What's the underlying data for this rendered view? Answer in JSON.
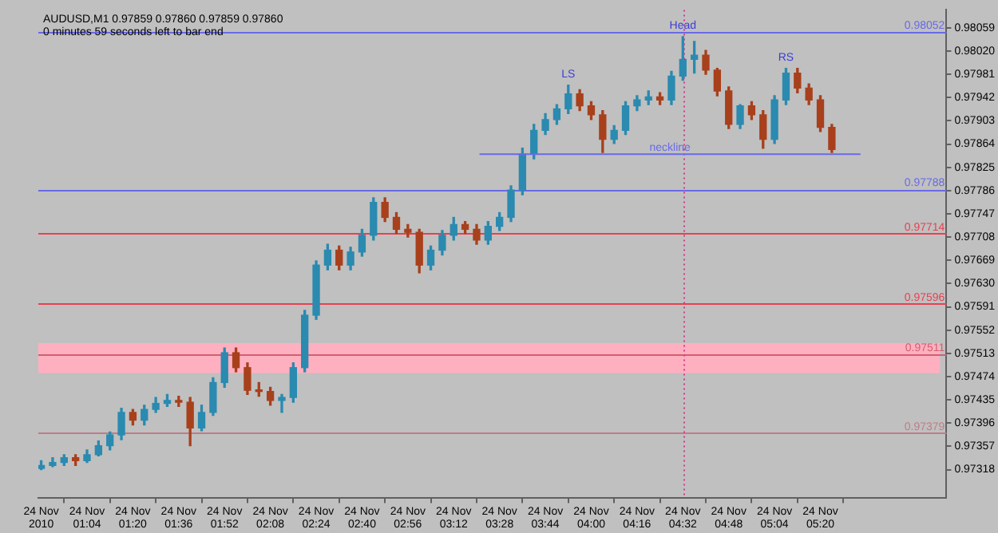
{
  "chart_data": {
    "type": "candlestick",
    "title": "AUDUSD,M1 0.97859 0.97860 0.97859 0.97860",
    "subtitle": "0 minutes 59 seconds left to bar end",
    "x": [
      "2010-11-24T00:48",
      "2010-11-24T00:52",
      "2010-11-24T00:56",
      "2010-11-24T01:00",
      "2010-11-24T01:04",
      "2010-11-24T01:08",
      "2010-11-24T01:12",
      "2010-11-24T01:16",
      "2010-11-24T01:20",
      "2010-11-24T01:24",
      "2010-11-24T01:28",
      "2010-11-24T01:32",
      "2010-11-24T01:36",
      "2010-11-24T01:40",
      "2010-11-24T01:44",
      "2010-11-24T01:48",
      "2010-11-24T01:52",
      "2010-11-24T01:56",
      "2010-11-24T02:00",
      "2010-11-24T02:04",
      "2010-11-24T02:08",
      "2010-11-24T02:12",
      "2010-11-24T02:16",
      "2010-11-24T02:20",
      "2010-11-24T02:24",
      "2010-11-24T02:28",
      "2010-11-24T02:32",
      "2010-11-24T02:36",
      "2010-11-24T02:40",
      "2010-11-24T02:44",
      "2010-11-24T02:48",
      "2010-11-24T02:52",
      "2010-11-24T02:56",
      "2010-11-24T03:00",
      "2010-11-24T03:04",
      "2010-11-24T03:08",
      "2010-11-24T03:12",
      "2010-11-24T03:16",
      "2010-11-24T03:20",
      "2010-11-24T03:24",
      "2010-11-24T03:28",
      "2010-11-24T03:32",
      "2010-11-24T03:36",
      "2010-11-24T03:40",
      "2010-11-24T03:44",
      "2010-11-24T03:48",
      "2010-11-24T03:52",
      "2010-11-24T03:56",
      "2010-11-24T04:00",
      "2010-11-24T04:04",
      "2010-11-24T04:08",
      "2010-11-24T04:12",
      "2010-11-24T04:16",
      "2010-11-24T04:20",
      "2010-11-24T04:24",
      "2010-11-24T04:28",
      "2010-11-24T04:32",
      "2010-11-24T04:36",
      "2010-11-24T04:40",
      "2010-11-24T04:44",
      "2010-11-24T04:48",
      "2010-11-24T04:52",
      "2010-11-24T04:56",
      "2010-11-24T05:00",
      "2010-11-24T05:04",
      "2010-11-24T05:08",
      "2010-11-24T05:12",
      "2010-11-24T05:16",
      "2010-11-24T05:20",
      "2010-11-24T05:24"
    ],
    "ohlc": [
      [
        0.9732,
        0.97333,
        0.97318,
        0.97325
      ],
      [
        0.97325,
        0.97338,
        0.97323,
        0.9733
      ],
      [
        0.9733,
        0.97343,
        0.97325,
        0.97338
      ],
      [
        0.97338,
        0.97343,
        0.97325,
        0.97333
      ],
      [
        0.97333,
        0.97351,
        0.9733,
        0.97343
      ],
      [
        0.97343,
        0.97366,
        0.97341,
        0.97358
      ],
      [
        0.97358,
        0.97381,
        0.97351,
        0.97376
      ],
      [
        0.97376,
        0.97421,
        0.97368,
        0.97414
      ],
      [
        0.97414,
        0.97419,
        0.97393,
        0.97401
      ],
      [
        0.97401,
        0.97426,
        0.97393,
        0.97419
      ],
      [
        0.97419,
        0.97439,
        0.97414,
        0.97429
      ],
      [
        0.97429,
        0.97444,
        0.97424,
        0.97434
      ],
      [
        0.97434,
        0.97441,
        0.97424,
        0.97431
      ],
      [
        0.97431,
        0.97439,
        0.97358,
        0.97388
      ],
      [
        0.97388,
        0.97426,
        0.97383,
        0.97414
      ],
      [
        0.97414,
        0.97472,
        0.97409,
        0.97464
      ],
      [
        0.97464,
        0.97522,
        0.97456,
        0.97514
      ],
      [
        0.97514,
        0.97522,
        0.97482,
        0.97489
      ],
      [
        0.97489,
        0.97497,
        0.97444,
        0.97451
      ],
      [
        0.97451,
        0.97464,
        0.97441,
        0.97449
      ],
      [
        0.97449,
        0.97456,
        0.97426,
        0.97434
      ],
      [
        0.97434,
        0.97444,
        0.97414,
        0.97439
      ],
      [
        0.97439,
        0.97497,
        0.97431,
        0.97489
      ],
      [
        0.97489,
        0.97585,
        0.97482,
        0.97577
      ],
      [
        0.97577,
        0.97668,
        0.9757,
        0.97661
      ],
      [
        0.97661,
        0.97696,
        0.97653,
        0.97686
      ],
      [
        0.97686,
        0.97693,
        0.97653,
        0.97661
      ],
      [
        0.97661,
        0.97691,
        0.97653,
        0.97683
      ],
      [
        0.97683,
        0.97721,
        0.97676,
        0.97711
      ],
      [
        0.97711,
        0.97774,
        0.97703,
        0.97766
      ],
      [
        0.97766,
        0.97774,
        0.97734,
        0.97741
      ],
      [
        0.97741,
        0.97749,
        0.97714,
        0.97721
      ],
      [
        0.97721,
        0.97729,
        0.97708,
        0.97716
      ],
      [
        0.97716,
        0.97721,
        0.97648,
        0.97661
      ],
      [
        0.97661,
        0.97693,
        0.97653,
        0.97686
      ],
      [
        0.97686,
        0.97719,
        0.97678,
        0.97711
      ],
      [
        0.97711,
        0.97741,
        0.97703,
        0.97729
      ],
      [
        0.97729,
        0.97734,
        0.97714,
        0.97721
      ],
      [
        0.97721,
        0.97729,
        0.97696,
        0.97703
      ],
      [
        0.97703,
        0.97734,
        0.97696,
        0.97726
      ],
      [
        0.97726,
        0.97749,
        0.97719,
        0.97741
      ],
      [
        0.97741,
        0.97794,
        0.97734,
        0.97787
      ],
      [
        0.97787,
        0.97857,
        0.97779,
        0.97847
      ],
      [
        0.97847,
        0.97897,
        0.97839,
        0.97887
      ],
      [
        0.97887,
        0.97915,
        0.9788,
        0.97905
      ],
      [
        0.97905,
        0.9793,
        0.97897,
        0.97923
      ],
      [
        0.97923,
        0.97963,
        0.97915,
        0.97948
      ],
      [
        0.97948,
        0.97955,
        0.9792,
        0.97928
      ],
      [
        0.97928,
        0.97935,
        0.97905,
        0.97913
      ],
      [
        0.97913,
        0.9792,
        0.9785,
        0.97872
      ],
      [
        0.97872,
        0.97895,
        0.97865,
        0.97887
      ],
      [
        0.97887,
        0.97935,
        0.9788,
        0.97928
      ],
      [
        0.97928,
        0.97945,
        0.9792,
        0.97938
      ],
      [
        0.97938,
        0.97953,
        0.9793,
        0.97943
      ],
      [
        0.97943,
        0.9795,
        0.9793,
        0.97938
      ],
      [
        0.97938,
        0.97986,
        0.9793,
        0.97978
      ],
      [
        0.97978,
        0.98044,
        0.97971,
        0.98006
      ],
      [
        0.98006,
        0.98036,
        0.97983,
        0.98013
      ],
      [
        0.98013,
        0.98021,
        0.97981,
        0.97988
      ],
      [
        0.97988,
        0.97991,
        0.97945,
        0.97953
      ],
      [
        0.97953,
        0.9796,
        0.9789,
        0.97897
      ],
      [
        0.97897,
        0.9793,
        0.9789,
        0.97928
      ],
      [
        0.97928,
        0.97935,
        0.97905,
        0.97913
      ],
      [
        0.97913,
        0.9792,
        0.97857,
        0.97872
      ],
      [
        0.97872,
        0.97945,
        0.97865,
        0.97938
      ],
      [
        0.97938,
        0.97991,
        0.9793,
        0.97983
      ],
      [
        0.97983,
        0.97991,
        0.9795,
        0.97958
      ],
      [
        0.97958,
        0.97965,
        0.9793,
        0.97938
      ],
      [
        0.97938,
        0.97945,
        0.97885,
        0.97892
      ],
      [
        0.97892,
        0.97897,
        0.9785,
        0.97855
      ]
    ],
    "colors": [
      "#2a8ab0",
      "#2a8ab0",
      "#2a8ab0",
      "#a8401c",
      "#2a8ab0",
      "#2a8ab0",
      "#2a8ab0",
      "#2a8ab0",
      "#a8401c",
      "#2a8ab0",
      "#2a8ab0",
      "#2a8ab0",
      "#a8401c",
      "#a8401c",
      "#2a8ab0",
      "#2a8ab0",
      "#2a8ab0",
      "#a8401c",
      "#a8401c",
      "#a8401c",
      "#a8401c",
      "#2a8ab0",
      "#2a8ab0",
      "#2a8ab0",
      "#2a8ab0",
      "#2a8ab0",
      "#a8401c",
      "#2a8ab0",
      "#2a8ab0",
      "#2a8ab0",
      "#a8401c",
      "#a8401c",
      "#a8401c",
      "#a8401c",
      "#2a8ab0",
      "#2a8ab0",
      "#2a8ab0",
      "#a8401c",
      "#a8401c",
      "#2a8ab0",
      "#2a8ab0",
      "#2a8ab0",
      "#2a8ab0",
      "#2a8ab0",
      "#2a8ab0",
      "#2a8ab0",
      "#2a8ab0",
      "#a8401c",
      "#a8401c",
      "#a8401c",
      "#2a8ab0",
      "#2a8ab0",
      "#2a8ab0",
      "#2a8ab0",
      "#a8401c",
      "#2a8ab0",
      "#2a8ab0",
      "#2a8ab0",
      "#a8401c",
      "#a8401c",
      "#a8401c",
      "#2a8ab0",
      "#a8401c",
      "#a8401c",
      "#2a8ab0",
      "#2a8ab0",
      "#a8401c",
      "#a8401c",
      "#a8401c",
      "#a8401c"
    ],
    "series": [
      {
        "type": "line",
        "name": "neckline",
        "color": "#6a6ae6",
        "x": [
          "2010-11-24T03:21",
          "2010-11-24T05:34"
        ],
        "values": [
          0.97847,
          0.97847
        ]
      }
    ],
    "xlim": [
      "2010-11-24T00:47",
      "2010-11-24T06:04"
    ],
    "xticks": [
      {
        "value": "2010-11-24T00:48",
        "label": "24 Nov 2010"
      },
      {
        "value": "2010-11-24T01:04",
        "label": "24 Nov 01:04"
      },
      {
        "value": "2010-11-24T01:20",
        "label": "24 Nov 01:20"
      },
      {
        "value": "2010-11-24T01:36",
        "label": "24 Nov 01:36"
      },
      {
        "value": "2010-11-24T01:52",
        "label": "24 Nov 01:52"
      },
      {
        "value": "2010-11-24T02:08",
        "label": "24 Nov 02:08"
      },
      {
        "value": "2010-11-24T02:24",
        "label": "24 Nov 02:24"
      },
      {
        "value": "2010-11-24T02:40",
        "label": "24 Nov 02:40"
      },
      {
        "value": "2010-11-24T02:56",
        "label": "24 Nov 02:56"
      },
      {
        "value": "2010-11-24T03:12",
        "label": "24 Nov 03:12"
      },
      {
        "value": "2010-11-24T03:28",
        "label": "24 Nov 03:28"
      },
      {
        "value": "2010-11-24T03:44",
        "label": "24 Nov 03:44"
      },
      {
        "value": "2010-11-24T04:00",
        "label": "24 Nov 04:00"
      },
      {
        "value": "2010-11-24T04:16",
        "label": "24 Nov 04:16"
      },
      {
        "value": "2010-11-24T04:32",
        "label": "24 Nov 04:32"
      },
      {
        "value": "2010-11-24T04:48",
        "label": "24 Nov 04:48"
      },
      {
        "value": "2010-11-24T05:04",
        "label": "24 Nov 05:04"
      },
      {
        "value": "2010-11-24T05:20",
        "label": "24 Nov 05:20"
      }
    ],
    "ylim": [
      0.9727,
      0.98089
    ],
    "yticks": [
      0.98059,
      {
        "value": 0.9802,
        "label": "0.98020"
      },
      0.97981,
      0.97942,
      0.97903,
      0.97864,
      0.97825,
      0.97786,
      0.97747,
      0.97708,
      0.97669,
      {
        "value": 0.9763,
        "label": "0.97630"
      },
      0.97591,
      0.97552,
      0.97513,
      0.97474,
      0.97435,
      0.97396,
      0.97357,
      0.97318
    ],
    "ref_lines": [
      {
        "axis": "y",
        "value": 0.98052,
        "label": "0.98052",
        "color": "#6a6ae6"
      },
      {
        "axis": "y",
        "value": 0.97788,
        "label": "0.97788",
        "color": "#6a6ae6"
      },
      {
        "axis": "y",
        "value": 0.97714,
        "label": "0.97714",
        "color": "#e84050"
      },
      {
        "axis": "y",
        "value": 0.97596,
        "label": "0.97596",
        "color": "#e84050"
      },
      {
        "axis": "y",
        "value": 0.97511,
        "label": "0.97511",
        "color": "#d06070"
      },
      {
        "axis": "y",
        "value": 0.97379,
        "label": "0.97379",
        "color": "#c07c88"
      },
      {
        "axis": "x",
        "value": "2010-11-24T04:32",
        "color": "#d03c8c",
        "line_style": "dotted"
      }
    ],
    "bands": [
      {
        "axis": "y",
        "from": 0.9748,
        "to": 0.9753,
        "color": "#ffb0c0"
      }
    ],
    "annotations": [
      {
        "text": "LS",
        "x": "2010-11-24T03:52",
        "y": 0.97963
      },
      {
        "text": "Head",
        "x": "2010-11-24T04:32",
        "y": 0.98044
      },
      {
        "text": "RS",
        "x": "2010-11-24T05:08",
        "y": 0.97991
      }
    ],
    "grid": false,
    "legend": false
  }
}
